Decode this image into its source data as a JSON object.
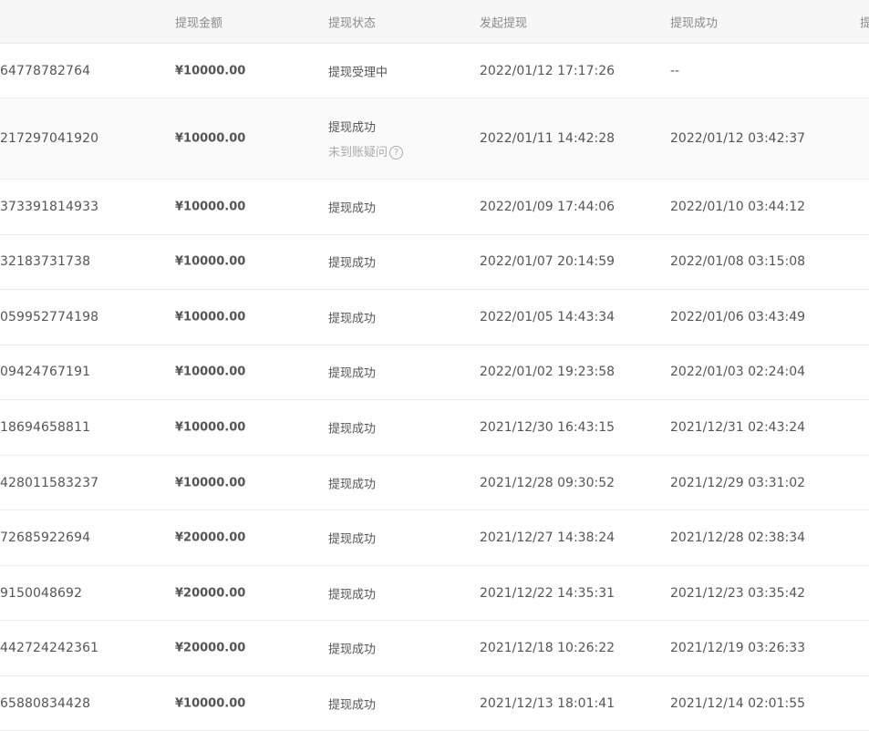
{
  "header": {
    "amount": "提现金额",
    "status": "提现状态",
    "start": "发起提现",
    "success": "提现成功",
    "extra": "提"
  },
  "help_icon": "?",
  "rows": [
    {
      "id": "64778782764",
      "amount": "¥10000.00",
      "status": "提现受理中",
      "start": "2022/01/12 17:17:26",
      "success": "--"
    },
    {
      "id": "217297041920",
      "amount": "¥10000.00",
      "status": "提现成功",
      "sub": "未到账疑问",
      "start": "2022/01/11 14:42:28",
      "success": "2022/01/12 03:42:37"
    },
    {
      "id": "373391814933",
      "amount": "¥10000.00",
      "status": "提现成功",
      "start": "2022/01/09 17:44:06",
      "success": "2022/01/10 03:44:12"
    },
    {
      "id": "32183731738",
      "amount": "¥10000.00",
      "status": "提现成功",
      "start": "2022/01/07 20:14:59",
      "success": "2022/01/08 03:15:08"
    },
    {
      "id": "059952774198",
      "amount": "¥10000.00",
      "status": "提现成功",
      "start": "2022/01/05 14:43:34",
      "success": "2022/01/06 03:43:49"
    },
    {
      "id": "09424767191",
      "amount": "¥10000.00",
      "status": "提现成功",
      "start": "2022/01/02 19:23:58",
      "success": "2022/01/03 02:24:04"
    },
    {
      "id": "18694658811",
      "amount": "¥10000.00",
      "status": "提现成功",
      "start": "2021/12/30 16:43:15",
      "success": "2021/12/31 02:43:24"
    },
    {
      "id": "428011583237",
      "amount": "¥10000.00",
      "status": "提现成功",
      "start": "2021/12/28 09:30:52",
      "success": "2021/12/29 03:31:02"
    },
    {
      "id": "72685922694",
      "amount": "¥20000.00",
      "status": "提现成功",
      "start": "2021/12/27 14:38:24",
      "success": "2021/12/28 02:38:34"
    },
    {
      "id": "9150048692",
      "amount": "¥20000.00",
      "status": "提现成功",
      "start": "2021/12/22 14:35:31",
      "success": "2021/12/23 03:35:42"
    },
    {
      "id": "442724242361",
      "amount": "¥20000.00",
      "status": "提现成功",
      "start": "2021/12/18 10:26:22",
      "success": "2021/12/19 03:26:33"
    },
    {
      "id": "65880834428",
      "amount": "¥10000.00",
      "status": "提现成功",
      "start": "2021/12/13 18:01:41",
      "success": "2021/12/14 02:01:55"
    }
  ]
}
